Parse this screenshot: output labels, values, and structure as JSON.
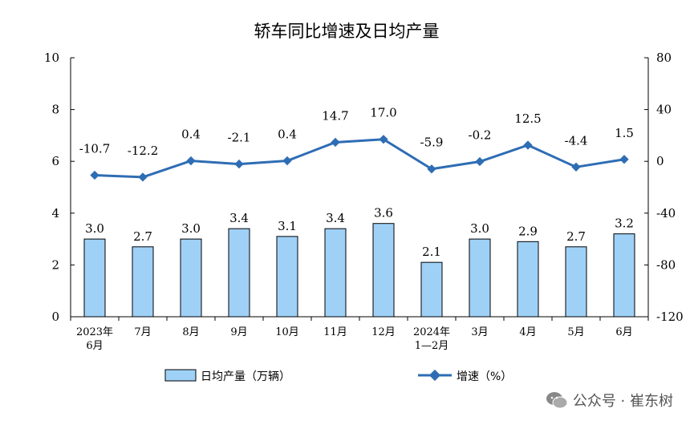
{
  "chart_data": {
    "type": "bar+line",
    "title": "轿车同比增速及日均产量",
    "categories": [
      [
        "2023年",
        "6月"
      ],
      [
        "7月"
      ],
      [
        "8月"
      ],
      [
        "9月"
      ],
      [
        "10月"
      ],
      [
        "11月"
      ],
      [
        "12月"
      ],
      [
        "2024年",
        "1—2月"
      ],
      [
        "3月"
      ],
      [
        "4月"
      ],
      [
        "5月"
      ],
      [
        "6月"
      ]
    ],
    "series": [
      {
        "name": "日均产量（万辆）",
        "type": "bar",
        "axis": "left",
        "values": [
          3.0,
          2.7,
          3.0,
          3.4,
          3.1,
          3.4,
          3.6,
          2.1,
          3.0,
          2.9,
          2.7,
          3.2
        ],
        "labels": [
          "3.0",
          "2.7",
          "3.0",
          "3.4",
          "3.1",
          "3.4",
          "3.6",
          "2.1",
          "3.0",
          "2.9",
          "2.7",
          "3.2"
        ],
        "color": "#9fd1f7"
      },
      {
        "name": "增速（%）",
        "type": "line",
        "axis": "right",
        "values": [
          -10.7,
          -12.2,
          0.4,
          -2.1,
          0.4,
          14.7,
          17.0,
          -5.9,
          -0.2,
          12.5,
          -4.4,
          1.5
        ],
        "labels": [
          "-10.7",
          "-12.2",
          "0.4",
          "-2.1",
          "0.4",
          "14.7",
          "17.0",
          "-5.9",
          "-0.2",
          "12.5",
          "-4.4",
          "1.5"
        ],
        "color": "#2e6db4"
      }
    ],
    "y_left": {
      "min": 0,
      "max": 10,
      "ticks": [
        0,
        2,
        4,
        6,
        8,
        10
      ]
    },
    "y_right": {
      "min": -120,
      "max": 80,
      "ticks": [
        -120,
        -80,
        -40,
        0,
        40,
        80
      ]
    },
    "grid": false,
    "legend": "bottom"
  },
  "watermark": {
    "text": "公众号 · 崔东树",
    "icon": "wechat-icon"
  }
}
